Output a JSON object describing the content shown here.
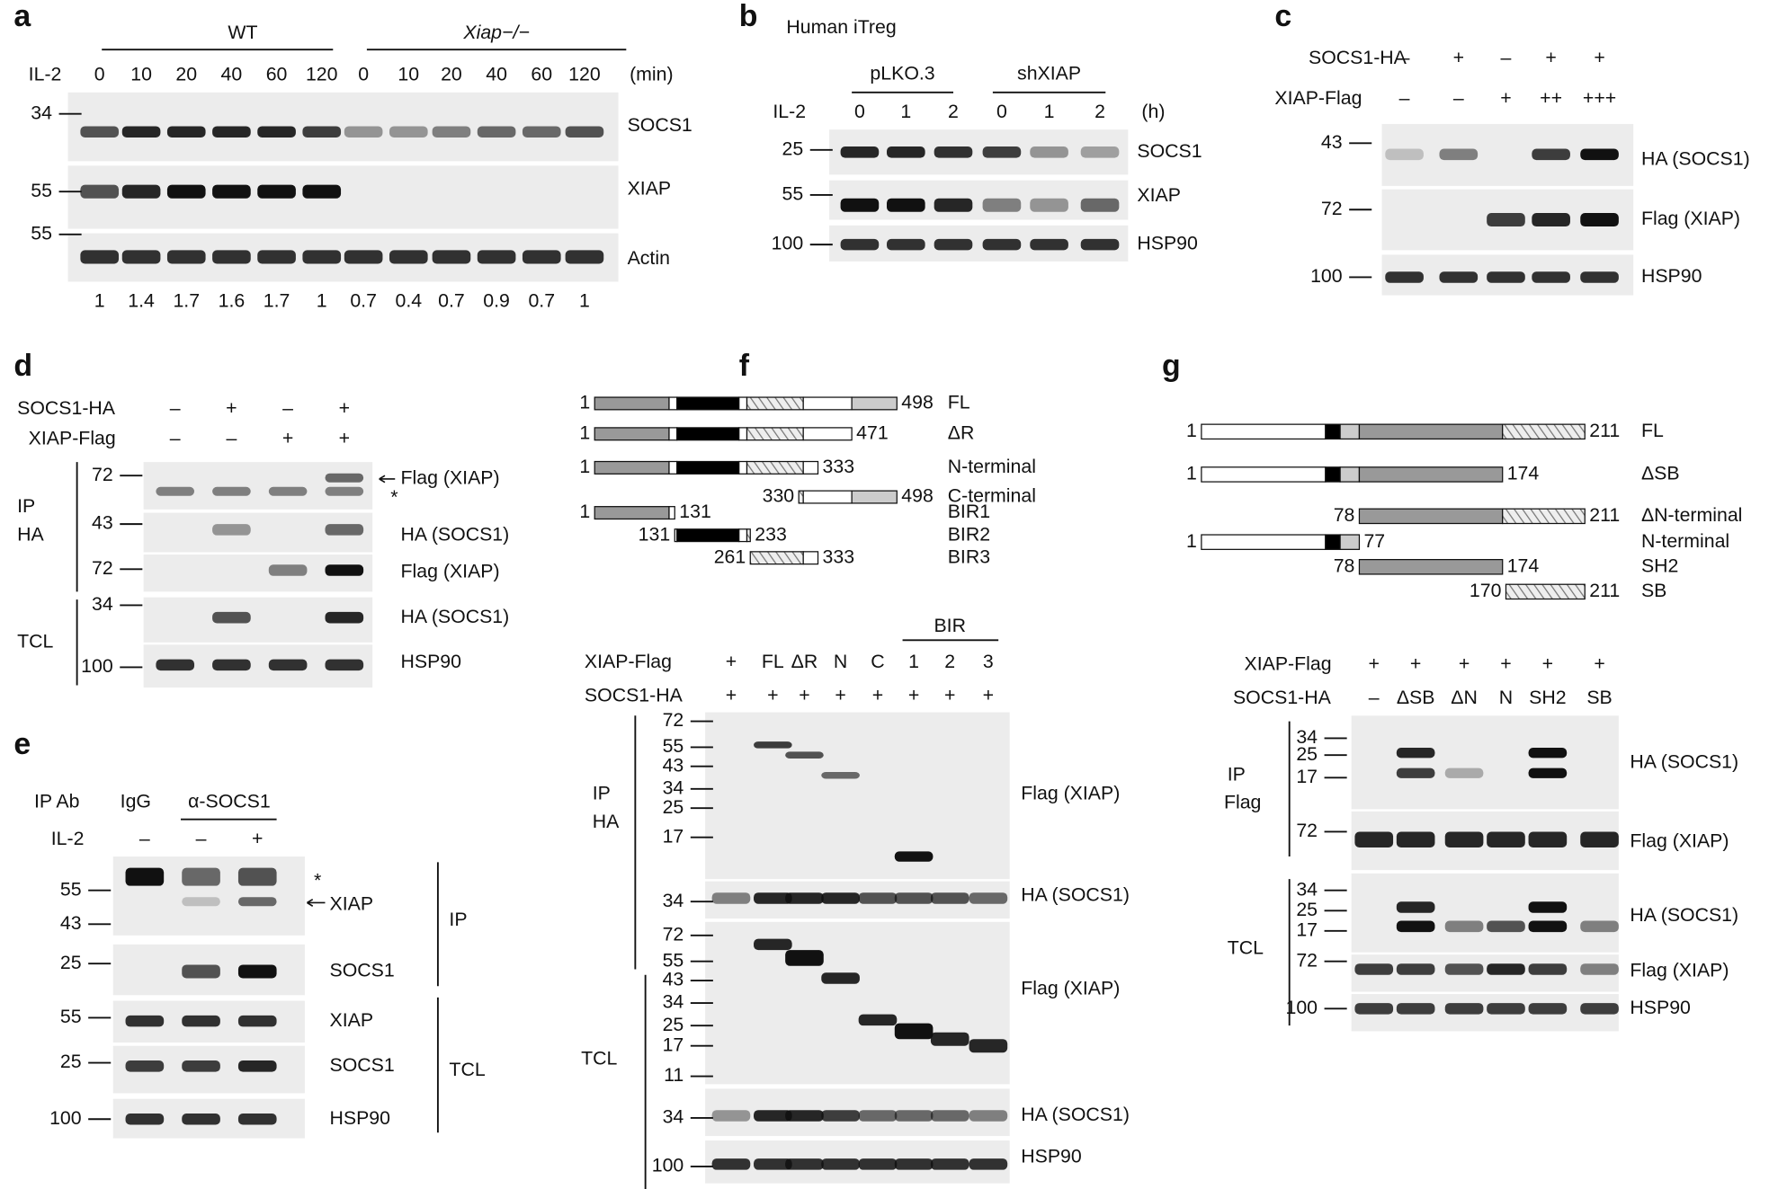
{
  "panel_a": {
    "label": "a",
    "groups": [
      "WT",
      "Xiap−/−"
    ],
    "treatment": "IL-2",
    "times": [
      "0",
      "10",
      "20",
      "40",
      "60",
      "120",
      "0",
      "10",
      "20",
      "40",
      "60",
      "120"
    ],
    "unit": "(min)",
    "markers": [
      "34",
      "55",
      "55"
    ],
    "blots": [
      "SOCS1",
      "XIAP",
      "Actin"
    ],
    "quantification": [
      "1",
      "1.4",
      "1.7",
      "1.6",
      "1.7",
      "1",
      "0.7",
      "0.4",
      "0.7",
      "0.9",
      "0.7",
      "1"
    ]
  },
  "panel_b": {
    "label": "b",
    "title": "Human iTreg",
    "groups": [
      "pLKO.3",
      "shXIAP"
    ],
    "treatment": "IL-2",
    "times": [
      "0",
      "1",
      "2",
      "0",
      "1",
      "2"
    ],
    "unit": "(h)",
    "markers": [
      "25",
      "55",
      "100"
    ],
    "blots": [
      "SOCS1",
      "XIAP",
      "HSP90"
    ]
  },
  "panel_c": {
    "label": "c",
    "conditions": [
      {
        "name": "SOCS1-HA",
        "lanes": [
          "–",
          "+",
          "–",
          "+",
          "+"
        ]
      },
      {
        "name": "XIAP-Flag",
        "lanes": [
          "–",
          "–",
          "+",
          "++",
          "+++"
        ]
      }
    ],
    "markers": [
      "43",
      "72",
      "100"
    ],
    "blots": [
      "HA (SOCS1)",
      "Flag (XIAP)",
      "HSP90"
    ]
  },
  "panel_d": {
    "label": "d",
    "conditions": [
      {
        "name": "SOCS1-HA",
        "lanes": [
          "–",
          "+",
          "–",
          "+"
        ]
      },
      {
        "name": "XIAP-Flag",
        "lanes": [
          "–",
          "–",
          "+",
          "+"
        ]
      }
    ],
    "sections": [
      [
        "IP",
        "HA"
      ],
      [
        "TCL"
      ]
    ],
    "markers": [
      "72",
      "43",
      "72",
      "34",
      "100"
    ],
    "asterisk": "*",
    "blots": [
      "Flag (XIAP)",
      "HA (SOCS1)",
      "Flag (XIAP)",
      "HA (SOCS1)",
      "HSP90"
    ]
  },
  "panel_e": {
    "label": "e",
    "ip_label": "IP Ab",
    "antibodies": [
      "IgG",
      "α-SOCS1"
    ],
    "treatment": "IL-2",
    "lanes": [
      "–",
      "–",
      "+"
    ],
    "markers": [
      "55",
      "43",
      "25",
      "55",
      "25",
      "100"
    ],
    "asterisk": "*",
    "blots": [
      "XIAP",
      "SOCS1",
      "XIAP",
      "SOCS1",
      "HSP90"
    ],
    "sections": [
      "IP",
      "TCL"
    ]
  },
  "panel_f": {
    "label": "f",
    "constructs": [
      {
        "name": "FL",
        "start": 1,
        "end": 498
      },
      {
        "name": "ΔR",
        "start": 1,
        "end": 471
      },
      {
        "name": "N-terminal",
        "start": 1,
        "end": 333
      },
      {
        "name": "C-terminal",
        "start": 330,
        "end": 498
      },
      {
        "name": "BIR1",
        "start": 1,
        "end": 131
      },
      {
        "name": "BIR2",
        "start": 131,
        "end": 233
      },
      {
        "name": "BIR3",
        "start": 261,
        "end": 333
      }
    ],
    "group_label": "BIR",
    "conditions": [
      {
        "name": "XIAP-Flag",
        "lanes": [
          "+",
          "FL",
          "ΔR",
          "N",
          "C",
          "1",
          "2",
          "3"
        ]
      },
      {
        "name": "SOCS1-HA",
        "lanes": [
          "+",
          "+",
          "+",
          "+",
          "+",
          "+",
          "+",
          "+"
        ]
      }
    ],
    "sections": [
      [
        "IP",
        "HA"
      ],
      [
        "TCL"
      ]
    ],
    "markers": [
      "72",
      "55",
      "43",
      "34",
      "25",
      "17",
      "34",
      "72",
      "55",
      "43",
      "34",
      "25",
      "17",
      "11",
      "34",
      "100"
    ],
    "blots": [
      "Flag (XIAP)",
      "HA (SOCS1)",
      "Flag (XIAP)",
      "HA (SOCS1)",
      "HSP90"
    ]
  },
  "panel_g": {
    "label": "g",
    "constructs": [
      {
        "name": "FL",
        "start": 1,
        "end": 211
      },
      {
        "name": "ΔSB",
        "start": 1,
        "end": 174
      },
      {
        "name": "ΔN-terminal",
        "start": 78,
        "end": 211
      },
      {
        "name": "N-terminal",
        "start": 1,
        "end": 77
      },
      {
        "name": "SH2",
        "start": 78,
        "end": 174
      },
      {
        "name": "SB",
        "start": 170,
        "end": 211
      }
    ],
    "conditions": [
      {
        "name": "XIAP-Flag",
        "lanes": [
          "+",
          "+",
          "+",
          "+",
          "+",
          "+"
        ]
      },
      {
        "name": "SOCS1-HA",
        "lanes": [
          "–",
          "ΔSB",
          "ΔN",
          "N",
          "SH2",
          "SB"
        ]
      }
    ],
    "sections": [
      [
        "IP",
        "Flag"
      ],
      [
        "TCL"
      ]
    ],
    "markers": [
      "34",
      "25",
      "17",
      "72",
      "34",
      "25",
      "17",
      "72",
      "100"
    ],
    "blots": [
      "HA (SOCS1)",
      "Flag (XIAP)",
      "HA (SOCS1)",
      "Flag (XIAP)",
      "HSP90"
    ]
  }
}
